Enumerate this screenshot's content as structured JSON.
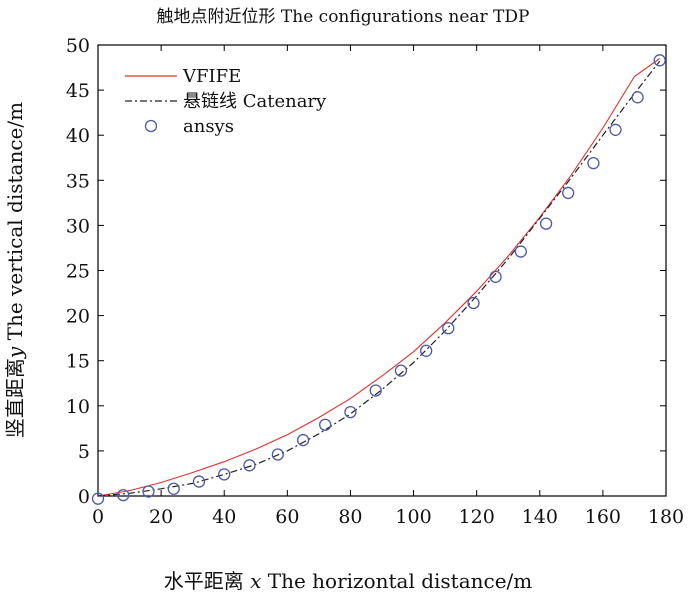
{
  "chart_data": {
    "type": "line",
    "title": "触地点附近位形 The configurations near TDP",
    "xlabel_prefix": "水平距离 ",
    "xlabel_var": "x",
    "xlabel_suffix": " The horizontal distance/m",
    "ylabel_prefix": "竖直距离",
    "ylabel_var": "y",
    "ylabel_suffix": " The vertical distance/m",
    "xlim": [
      0,
      180
    ],
    "ylim": [
      0,
      50
    ],
    "xticks": [
      0,
      20,
      40,
      60,
      80,
      100,
      120,
      140,
      160,
      180
    ],
    "yticks": [
      0,
      5,
      10,
      15,
      20,
      25,
      30,
      35,
      40,
      45,
      50
    ],
    "grid": false,
    "legend_position": "top-left",
    "series": [
      {
        "name": "VFIFE",
        "style": "solid",
        "color": "#e03030",
        "x": [
          0,
          10,
          20,
          30,
          40,
          50,
          60,
          70,
          80,
          90,
          100,
          110,
          120,
          130,
          140,
          150,
          160,
          170,
          178
        ],
        "y": [
          0,
          0.6,
          1.5,
          2.6,
          3.8,
          5.2,
          6.8,
          8.7,
          10.8,
          13.3,
          16.0,
          19.2,
          22.7,
          26.6,
          30.9,
          35.6,
          40.8,
          46.5,
          48.5
        ]
      },
      {
        "name": "悬链线 Catenary",
        "style": "dashdot",
        "color": "#222222",
        "x": [
          0,
          10,
          20,
          30,
          40,
          50,
          60,
          70,
          80,
          90,
          100,
          110,
          120,
          130,
          140,
          150,
          160,
          170,
          178
        ],
        "y": [
          0,
          0.3,
          0.8,
          1.4,
          2.4,
          3.5,
          5.0,
          6.9,
          9.1,
          11.8,
          14.8,
          18.3,
          22.2,
          26.3,
          30.8,
          35.3,
          40.0,
          44.6,
          48.2
        ]
      },
      {
        "name": "ansys",
        "style": "markers",
        "marker": "circle",
        "color": "#4b5aa8",
        "x": [
          0,
          8,
          16,
          24,
          32,
          40,
          48,
          57,
          65,
          72,
          80,
          88,
          96,
          104,
          111,
          119,
          126,
          134,
          142,
          149,
          157,
          164,
          171,
          178
        ],
        "y": [
          -0.3,
          0.1,
          0.5,
          0.8,
          1.6,
          2.4,
          3.4,
          4.6,
          6.2,
          7.9,
          9.3,
          11.7,
          13.9,
          16.1,
          18.6,
          21.4,
          24.3,
          27.1,
          30.2,
          33.6,
          36.9,
          40.6,
          44.2,
          48.3
        ]
      }
    ]
  }
}
